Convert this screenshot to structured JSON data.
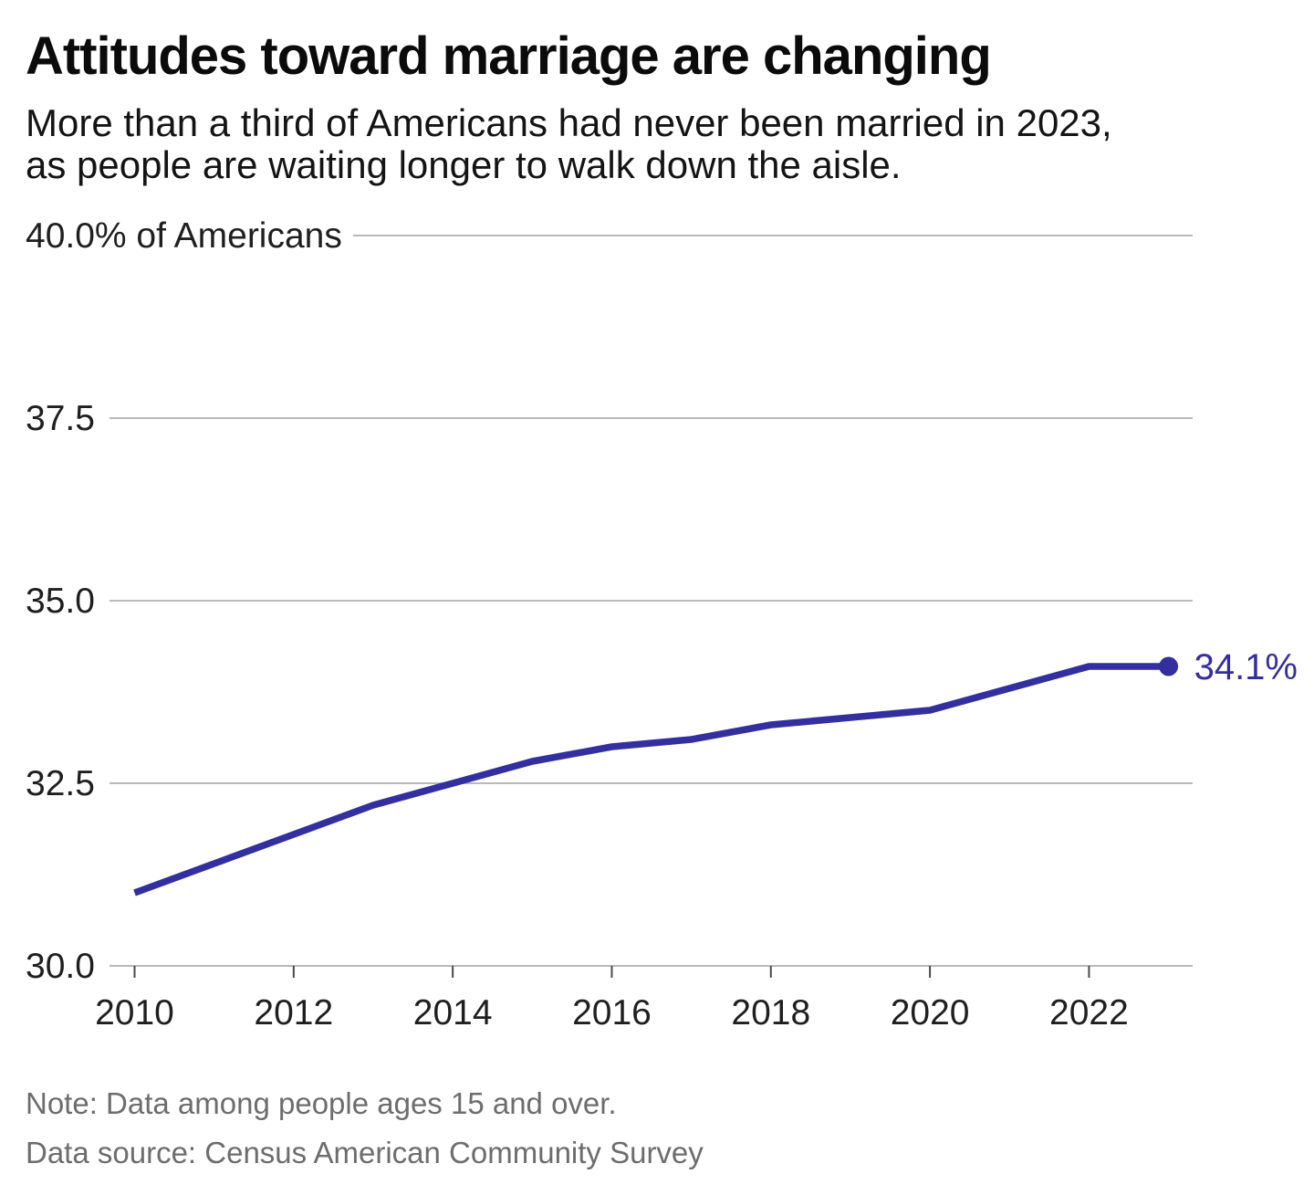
{
  "header": {
    "title": "Attitudes toward marriage are changing",
    "subtitle": "More than a third of Americans had never been married in 2023,\nas people are waiting longer to walk down the aisle."
  },
  "chart_data": {
    "type": "line",
    "x": [
      2010,
      2011,
      2012,
      2013,
      2014,
      2015,
      2016,
      2017,
      2018,
      2019,
      2020,
      2021,
      2022,
      2023
    ],
    "values": [
      31.0,
      31.4,
      31.8,
      32.2,
      32.5,
      32.8,
      33.0,
      33.1,
      33.3,
      33.4,
      33.5,
      33.8,
      34.1,
      34.1
    ],
    "end_label": "34.1%",
    "y_axis": {
      "min": 30,
      "max": 40,
      "ticks": [
        {
          "value": 30.0,
          "label": "30.0"
        },
        {
          "value": 32.5,
          "label": "32.5"
        },
        {
          "value": 35.0,
          "label": "35.0"
        },
        {
          "value": 37.5,
          "label": "37.5"
        },
        {
          "value": 40.0,
          "label": "40.0% of Americans"
        }
      ]
    },
    "x_axis": {
      "ticks": [
        2010,
        2012,
        2014,
        2016,
        2018,
        2020,
        2022
      ]
    },
    "grid": true,
    "legend": false,
    "colors": {
      "line": "#332f9e",
      "grid": "#b9b9b9",
      "tick": "#4a4a4a",
      "axis_text": "#1f1f1f"
    }
  },
  "footer": {
    "note": "Note: Data among people ages 15 and over.",
    "source": "Data source: Census American Community Survey"
  }
}
